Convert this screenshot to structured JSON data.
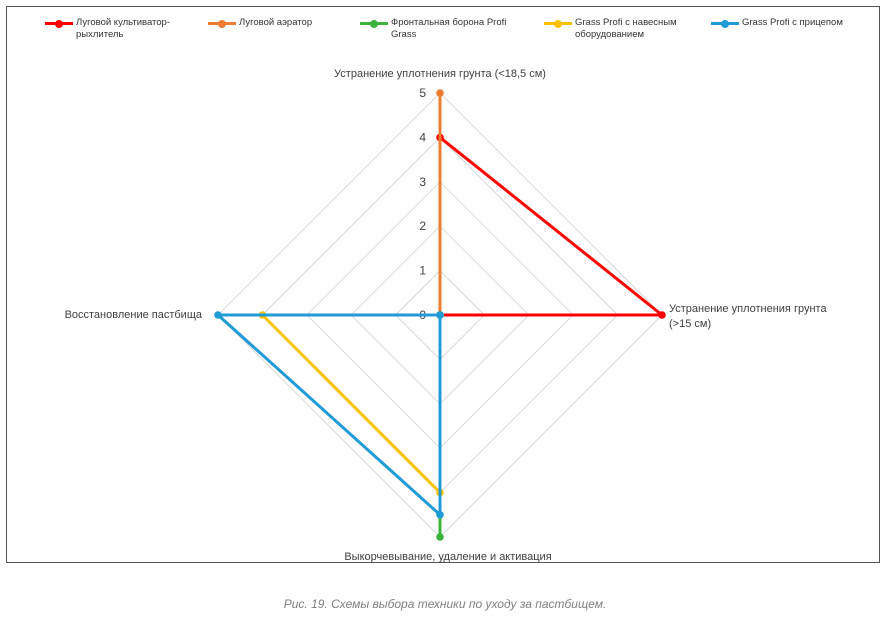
{
  "chart_data": {
    "type": "radar",
    "axes": [
      "Устранение уплотнения грунта (<18,5 см)",
      "Устранение уплотнения грунта (>15 см)",
      "Выкорчевывание,  удаление и активация",
      "Восстановление  пастбища"
    ],
    "ticks": [
      "0",
      "1",
      "2",
      "3",
      "4",
      "5"
    ],
    "rmax": 5,
    "series": [
      {
        "name": "Луговой культиватор-рыхлитель",
        "color": "#ff0000",
        "values": [
          4,
          5,
          0,
          0
        ]
      },
      {
        "name": "Луговой аэратор",
        "color": "#ed7d31",
        "values": [
          5,
          0,
          0,
          0
        ]
      },
      {
        "name": "Фронтальная  борона Profi Grass",
        "color": "#3cb43c",
        "values": [
          0,
          0,
          5,
          0
        ]
      },
      {
        "name": "Grass  Profi с навесным оборудованием",
        "color": "#ffc000",
        "values": [
          0,
          0,
          4,
          4
        ]
      },
      {
        "name": "Grass Profi с прицепом",
        "color": "#1f9bd7",
        "values": [
          0,
          0,
          4.5,
          5
        ]
      }
    ],
    "grid": true,
    "legend_position": "top"
  },
  "caption": "Рис. 19. Схемы выбора техники по уходу за пастбищем."
}
